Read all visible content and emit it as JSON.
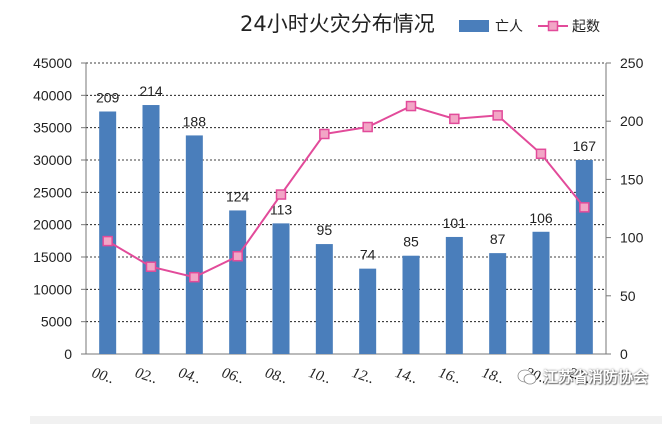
{
  "chart_data": {
    "type": "bar+line",
    "title": "24小时火灾分布情况",
    "categories": [
      "00..",
      "02..",
      "04..",
      "06..",
      "08..",
      "10..",
      "12..",
      "14..",
      "16..",
      "18..",
      "20..",
      "22.."
    ],
    "series": [
      {
        "name": "亡人",
        "type": "bar",
        "axis": "left",
        "color": "#4a7ebb",
        "values": [
          37500,
          38500,
          33800,
          22200,
          20200,
          17000,
          13200,
          15200,
          18100,
          15600,
          18900,
          30000
        ],
        "data_labels": [
          "209",
          "214",
          "188",
          "124",
          "113",
          "95",
          "74",
          "85",
          "101",
          "87",
          "106",
          "167"
        ]
      },
      {
        "name": "起数",
        "type": "line",
        "axis": "right",
        "color": "#e24b9a",
        "marker_color": "#f2a6c6",
        "values": [
          97,
          75,
          66,
          84,
          137,
          189,
          195,
          213,
          202,
          205,
          172,
          126
        ]
      }
    ],
    "y_left": {
      "min": 0,
      "max": 45000,
      "ticks": [
        "0",
        "5000",
        "10000",
        "15000",
        "20000",
        "25000",
        "30000",
        "35000",
        "40000",
        "45000"
      ]
    },
    "y_right": {
      "min": 0,
      "max": 250,
      "ticks": [
        "0",
        "50",
        "100",
        "150",
        "200",
        "250"
      ]
    },
    "grid": true,
    "legend_position": "top-right"
  },
  "watermark": {
    "text": "江苏省消防协会",
    "icon": "wechat-icon"
  }
}
